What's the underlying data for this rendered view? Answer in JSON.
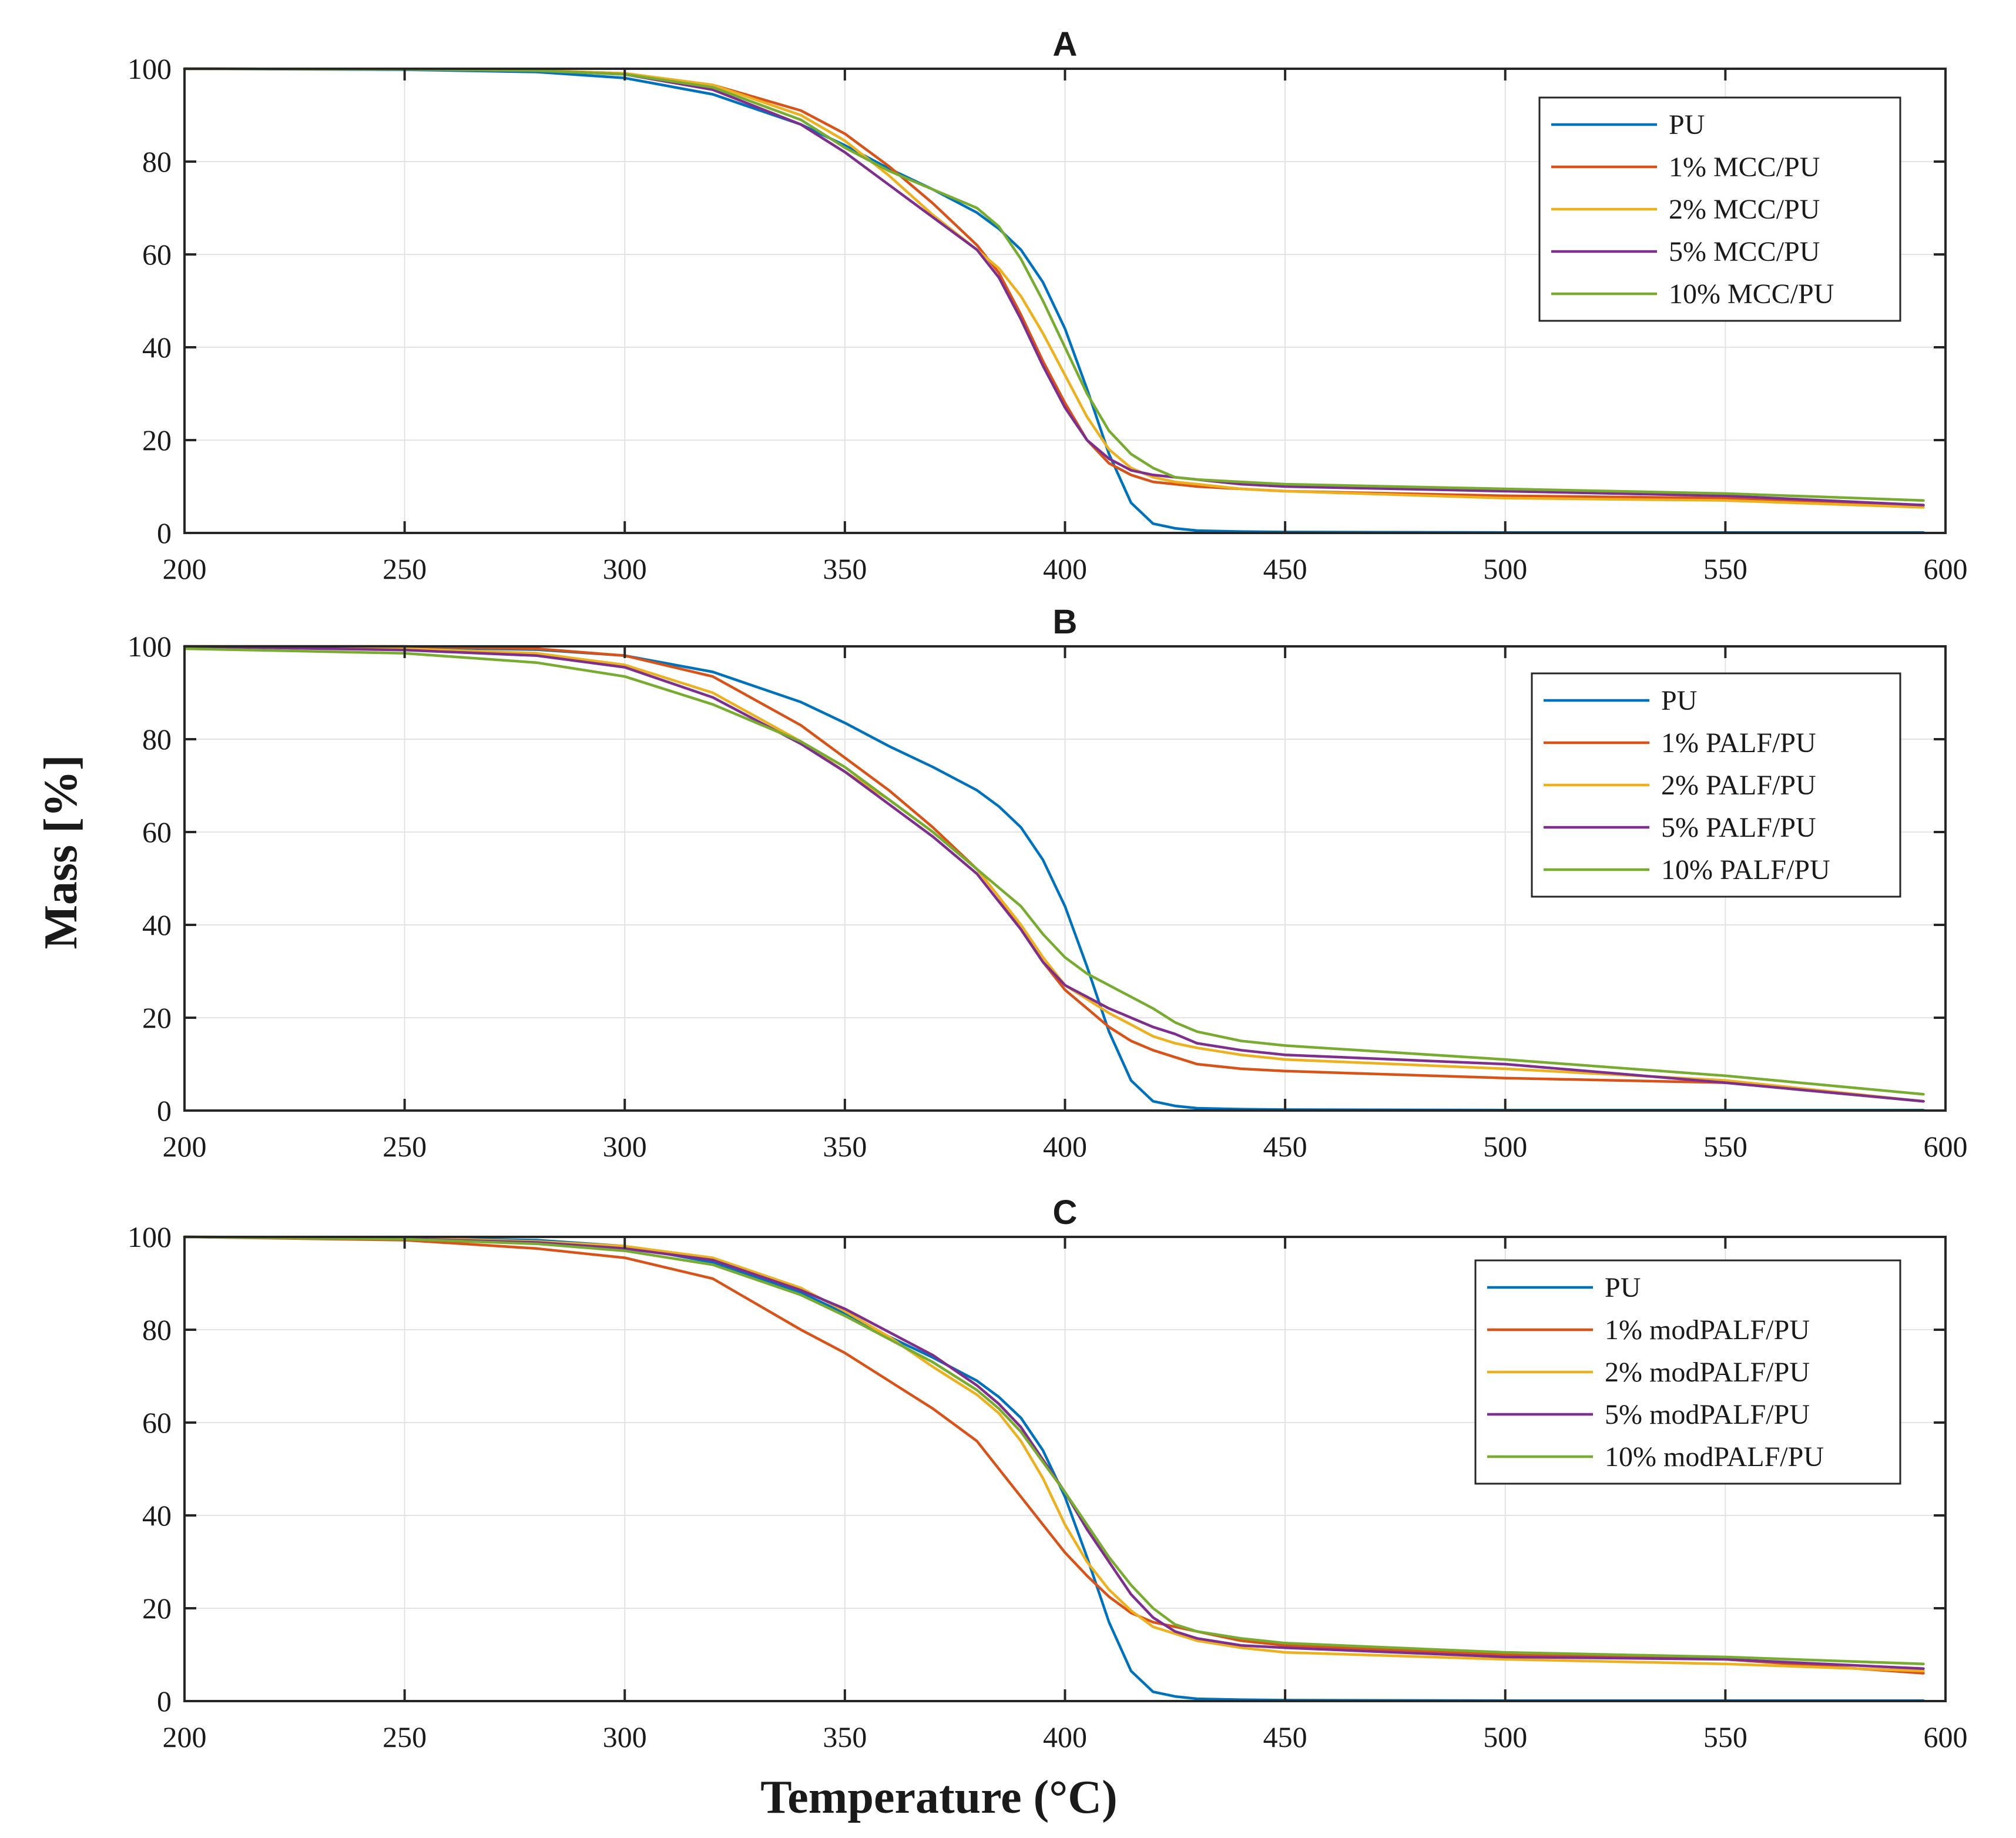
{
  "figure": {
    "xlabel": "Temperature (°C)",
    "ylabel": "Mass [%]"
  },
  "chart_data": [
    {
      "type": "line",
      "title": "A",
      "xlabel": "Temperature (°C)",
      "ylabel": "Mass [%]",
      "xlim": [
        200,
        600
      ],
      "ylim": [
        0,
        100
      ],
      "xticks": [
        200,
        250,
        300,
        350,
        400,
        450,
        500,
        550,
        600
      ],
      "yticks": [
        0,
        20,
        40,
        60,
        80,
        100
      ],
      "grid": true,
      "legend_position": "top-right",
      "x": [
        200,
        250,
        280,
        300,
        320,
        340,
        350,
        360,
        370,
        380,
        385,
        390,
        395,
        400,
        405,
        410,
        415,
        420,
        425,
        430,
        440,
        450,
        500,
        550,
        595
      ],
      "series": [
        {
          "name": "PU",
          "color": "#0072BD",
          "values": [
            100,
            99.8,
            99.3,
            98,
            94.5,
            88,
            83.5,
            78.5,
            74,
            69,
            65.5,
            61,
            54,
            44,
            31,
            17,
            6.5,
            2,
            1,
            0.5,
            0.3,
            0.2,
            0.1,
            0.1,
            0.1
          ]
        },
        {
          "name": "1% MCC/PU",
          "color": "#D95319",
          "values": [
            100,
            99.9,
            99.6,
            99,
            96.5,
            91,
            86,
            79,
            71,
            62,
            56,
            47,
            37,
            28,
            20,
            15,
            12.5,
            11,
            10.5,
            10,
            9.5,
            9,
            8,
            7.5,
            6
          ]
        },
        {
          "name": "2% MCC/PU",
          "color": "#EDB120",
          "values": [
            100,
            99.9,
            99.7,
            99,
            96.5,
            90,
            84.5,
            77,
            68.5,
            61,
            57,
            51,
            43,
            34,
            25,
            18,
            14,
            12,
            11,
            10.5,
            9.5,
            9,
            7.5,
            7,
            5.5
          ]
        },
        {
          "name": "5% MCC/PU",
          "color": "#7E2F8E",
          "values": [
            100,
            99.9,
            99.6,
            98.8,
            95.5,
            88,
            82,
            75,
            68,
            61,
            55,
            46,
            36,
            27,
            20,
            16,
            13.5,
            12.5,
            12,
            11.5,
            10.5,
            10,
            9,
            8,
            6
          ]
        },
        {
          "name": "10% MCC/PU",
          "color": "#77AC30",
          "values": [
            100,
            99.9,
            99.6,
            98.8,
            96,
            89,
            83,
            78,
            74,
            70,
            66,
            59,
            50,
            40,
            30,
            22,
            17,
            14,
            12,
            11.5,
            11,
            10.5,
            9.5,
            8.5,
            7
          ]
        }
      ]
    },
    {
      "type": "line",
      "title": "B",
      "xlabel": "Temperature (°C)",
      "ylabel": "Mass [%]",
      "xlim": [
        200,
        600
      ],
      "ylim": [
        0,
        100
      ],
      "xticks": [
        200,
        250,
        300,
        350,
        400,
        450,
        500,
        550,
        600
      ],
      "yticks": [
        0,
        20,
        40,
        60,
        80,
        100
      ],
      "grid": true,
      "legend_position": "top-right",
      "x": [
        200,
        250,
        280,
        300,
        320,
        340,
        350,
        360,
        370,
        380,
        385,
        390,
        395,
        400,
        405,
        410,
        415,
        420,
        425,
        430,
        440,
        450,
        500,
        550,
        595
      ],
      "series": [
        {
          "name": "PU",
          "color": "#0072BD",
          "values": [
            100,
            99.8,
            99.3,
            98,
            94.5,
            88,
            83.5,
            78.5,
            74,
            69,
            65.5,
            61,
            54,
            44,
            31,
            17,
            6.5,
            2,
            1,
            0.5,
            0.3,
            0.2,
            0.1,
            0.1,
            0.1
          ]
        },
        {
          "name": "1% PALF/PU",
          "color": "#D95319",
          "values": [
            100,
            100,
            99.5,
            98,
            93.5,
            83,
            76,
            69,
            61,
            52,
            46,
            39,
            32,
            26,
            22,
            18,
            15,
            13,
            11.5,
            10,
            9,
            8.5,
            7,
            6,
            2
          ]
        },
        {
          "name": "2% PALF/PU",
          "color": "#EDB120",
          "values": [
            100,
            99.5,
            98.5,
            96,
            90,
            79.5,
            73,
            67,
            60,
            52,
            46,
            40,
            33,
            27,
            24,
            21,
            18.5,
            16,
            14.5,
            13.5,
            12,
            11,
            9,
            6.5,
            2
          ]
        },
        {
          "name": "5% PALF/PU",
          "color": "#7E2F8E",
          "values": [
            100,
            99.2,
            98,
            95.5,
            89,
            79,
            73,
            66,
            59,
            51,
            45,
            39,
            32,
            27,
            24.5,
            22,
            20,
            18,
            16.5,
            14.5,
            13,
            12,
            10,
            6,
            2
          ]
        },
        {
          "name": "10% PALF/PU",
          "color": "#77AC30",
          "values": [
            99.5,
            98.5,
            96.5,
            93.5,
            87.5,
            79.5,
            74,
            67,
            60,
            52,
            48,
            44,
            38,
            33,
            29.5,
            27,
            24.5,
            22,
            19,
            17,
            15,
            14,
            11,
            7.5,
            3.5
          ]
        }
      ]
    },
    {
      "type": "line",
      "title": "C",
      "xlabel": "Temperature (°C)",
      "ylabel": "Mass [%]",
      "xlim": [
        200,
        600
      ],
      "ylim": [
        0,
        100
      ],
      "xticks": [
        200,
        250,
        300,
        350,
        400,
        450,
        500,
        550,
        600
      ],
      "yticks": [
        0,
        20,
        40,
        60,
        80,
        100
      ],
      "grid": true,
      "legend_position": "top-right",
      "x": [
        200,
        250,
        280,
        300,
        320,
        340,
        350,
        360,
        370,
        380,
        385,
        390,
        395,
        400,
        405,
        410,
        415,
        420,
        425,
        430,
        440,
        450,
        500,
        550,
        595
      ],
      "series": [
        {
          "name": "PU",
          "color": "#0072BD",
          "values": [
            100,
            99.8,
            99.3,
            98,
            94.5,
            88,
            83.5,
            78.5,
            74,
            69,
            65.5,
            61,
            54,
            44,
            31,
            17,
            6.5,
            2,
            1,
            0.5,
            0.3,
            0.2,
            0.1,
            0.1,
            0.1
          ]
        },
        {
          "name": "1% modPALF/PU",
          "color": "#D95319",
          "values": [
            100,
            99.3,
            97.5,
            95.5,
            91,
            80,
            75,
            69,
            63,
            56,
            50,
            44,
            38,
            32,
            27,
            22.5,
            19,
            17,
            16,
            15,
            13,
            12,
            10,
            9,
            6
          ]
        },
        {
          "name": "2% modPALF/PU",
          "color": "#EDB120",
          "values": [
            100,
            99.8,
            99,
            98,
            95.5,
            89,
            84,
            78.5,
            72,
            66,
            62,
            56,
            48,
            38,
            30,
            24,
            19.5,
            16,
            14.5,
            13,
            11.5,
            10.5,
            9,
            8,
            6.5
          ]
        },
        {
          "name": "5% modPALF/PU",
          "color": "#7E2F8E",
          "values": [
            100,
            99.6,
            98.8,
            97.5,
            95,
            88.5,
            84.5,
            79.5,
            74.5,
            68,
            64,
            59,
            52,
            45,
            37,
            30,
            23,
            18,
            15,
            13.5,
            12,
            11.5,
            9.5,
            9,
            7
          ]
        },
        {
          "name": "10% modPALF/PU",
          "color": "#77AC30",
          "values": [
            100,
            99.5,
            98.5,
            97,
            94,
            87.5,
            83,
            78,
            73,
            67,
            63,
            58,
            51.5,
            45,
            38,
            31,
            25,
            20,
            16.5,
            15,
            13.5,
            12.5,
            10.5,
            9.5,
            8
          ]
        }
      ]
    }
  ]
}
